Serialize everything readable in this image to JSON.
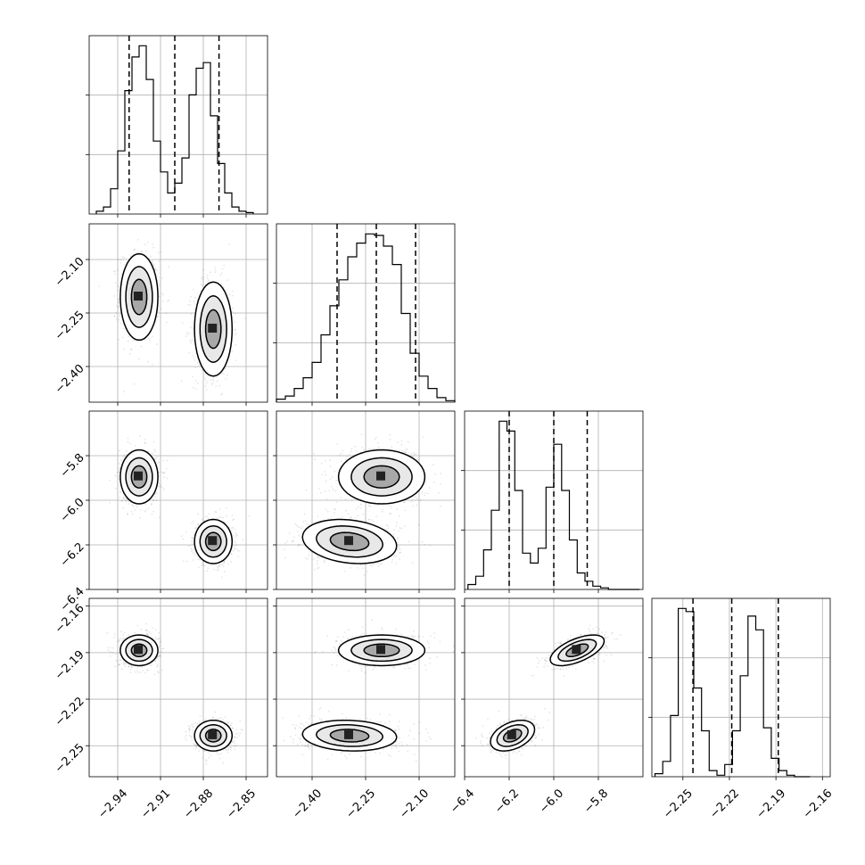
{
  "chart_data": {
    "type": "corner",
    "title": "",
    "parameters": [
      "",
      "",
      "",
      ""
    ],
    "axis_ranges": [
      [
        -2.96,
        -2.835
      ],
      [
        -2.5,
        -2.0
      ],
      [
        -6.4,
        -5.6
      ],
      [
        -2.27,
        -2.155
      ]
    ],
    "ticks": [
      [
        -2.94,
        -2.91,
        -2.88,
        -2.85
      ],
      [
        -2.4,
        -2.25,
        -2.1
      ],
      [
        -6.4,
        -6.2,
        -6.0,
        -5.8
      ],
      [
        -2.25,
        -2.22,
        -2.19,
        -2.16
      ]
    ],
    "tick_labels": [
      [
        "−2.94",
        "−2.91",
        "−2.88",
        "−2.85"
      ],
      [
        "−2.40",
        "−2.25",
        "−2.10"
      ],
      [
        "−6.4",
        "−6.2",
        "−6.0",
        "−5.8"
      ],
      [
        "−2.25",
        "−2.22",
        "−2.19",
        "−2.16"
      ]
    ],
    "row_tick_labels": [
      [],
      [
        "−2.10",
        "−2.25",
        "−2.40"
      ],
      [
        "−5.8",
        "−6.0",
        "−6.2",
        "−6.4"
      ],
      [
        "−2.16",
        "−2.19",
        "−2.22",
        "−2.25"
      ]
    ],
    "quantiles": [
      [
        -2.932,
        -2.9,
        -2.869
      ],
      [
        -2.33,
        -2.22,
        -2.11
      ],
      [
        -6.2,
        -6.0,
        -5.85
      ],
      [
        -2.2435,
        -2.2185,
        -2.1885
      ]
    ],
    "histograms": [
      {
        "edges_start": -2.955,
        "bin_width": 0.005,
        "counts": [
          2,
          5,
          18,
          45,
          88,
          112,
          120,
          96,
          52,
          30,
          15,
          22,
          40,
          85,
          104,
          108,
          70,
          36,
          15,
          5,
          2,
          1
        ]
      },
      {
        "edges_start": -2.5,
        "bin_width": 0.025,
        "counts": [
          2,
          4,
          9,
          16,
          26,
          44,
          63,
          80,
          95,
          104,
          110,
          109,
          102,
          90,
          58,
          32,
          17,
          9,
          3,
          1
        ]
      },
      {
        "edges_start": -6.385,
        "bin_width": 0.035,
        "counts": [
          3,
          8,
          24,
          48,
          102,
          96,
          60,
          22,
          16,
          25,
          62,
          88,
          60,
          30,
          10,
          5,
          2,
          1,
          0,
          0,
          0,
          0
        ]
      },
      {
        "edges_start": -2.268,
        "bin_width": 0.005,
        "counts": [
          2,
          10,
          40,
          110,
          108,
          58,
          30,
          4,
          1,
          8,
          30,
          66,
          105,
          96,
          32,
          12,
          4,
          1,
          0,
          0
        ]
      }
    ],
    "modes": [
      {
        "mean": [
          -2.925,
          -2.205,
          -5.895,
          -2.1885
        ],
        "sd": [
          0.006,
          0.055,
          0.055,
          0.0045
        ],
        "corr": {
          "1_2": 0.0,
          "2_3": 0.6,
          "1_3": 0.0
        }
      },
      {
        "mean": [
          -2.873,
          -2.295,
          -6.185,
          -2.2435
        ],
        "sd": [
          0.006,
          0.06,
          0.045,
          0.0045
        ],
        "corr": {
          "1_2": -0.2,
          "2_3": 0.4,
          "1_3": -0.1
        }
      }
    ],
    "grid": true,
    "legend": "none"
  }
}
